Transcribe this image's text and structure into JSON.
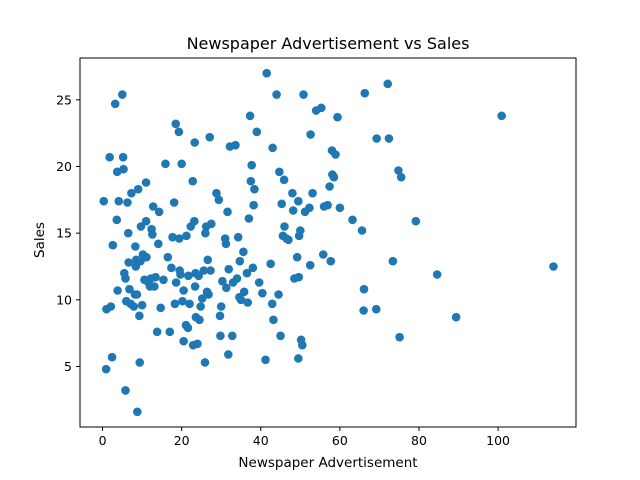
{
  "chart_data": {
    "type": "scatter",
    "title": "Newspaper Advertisement vs Sales",
    "xlabel": "Newspaper Advertisement",
    "ylabel": "Sales",
    "xlim": [
      -5.7,
      119.7
    ],
    "ylim": [
      0.46,
      28.14
    ],
    "xticks": [
      0,
      20,
      40,
      60,
      80,
      100
    ],
    "yticks": [
      5,
      10,
      15,
      20,
      25
    ],
    "grid": false,
    "marker_color": "#1f77b4",
    "points": [
      [
        0.3,
        17.4
      ],
      [
        0.9,
        4.8
      ],
      [
        1.0,
        9.3
      ],
      [
        1.8,
        20.7
      ],
      [
        2.1,
        9.5
      ],
      [
        2.4,
        5.7
      ],
      [
        2.6,
        14.1
      ],
      [
        3.2,
        24.7
      ],
      [
        3.6,
        16.0
      ],
      [
        3.7,
        19.6
      ],
      [
        3.8,
        10.7
      ],
      [
        4.1,
        17.4
      ],
      [
        5.0,
        25.4
      ],
      [
        5.2,
        20.7
      ],
      [
        5.3,
        19.8
      ],
      [
        5.5,
        12.0
      ],
      [
        5.8,
        3.2
      ],
      [
        5.8,
        11.6
      ],
      [
        6.0,
        9.9
      ],
      [
        6.3,
        17.3
      ],
      [
        6.5,
        15.0
      ],
      [
        6.6,
        12.8
      ],
      [
        6.8,
        10.8
      ],
      [
        7.1,
        9.7
      ],
      [
        7.3,
        18.0
      ],
      [
        7.9,
        9.5
      ],
      [
        8.2,
        10.4
      ],
      [
        8.3,
        14.0
      ],
      [
        8.4,
        12.5
      ],
      [
        8.5,
        13.0
      ],
      [
        8.7,
        10.4
      ],
      [
        8.8,
        1.6
      ],
      [
        9.0,
        18.3
      ],
      [
        9.3,
        8.8
      ],
      [
        9.4,
        5.3
      ],
      [
        9.6,
        12.9
      ],
      [
        9.7,
        15.5
      ],
      [
        10.0,
        9.6
      ],
      [
        10.2,
        13.4
      ],
      [
        10.6,
        11.5
      ],
      [
        11.0,
        15.9
      ],
      [
        11.0,
        18.8
      ],
      [
        11.1,
        13.2
      ],
      [
        11.6,
        11.3
      ],
      [
        12.0,
        11.0
      ],
      [
        12.2,
        11.6
      ],
      [
        12.4,
        15.3
      ],
      [
        12.6,
        14.9
      ],
      [
        12.8,
        17.0
      ],
      [
        13.1,
        11.0
      ],
      [
        13.4,
        11.7
      ],
      [
        13.8,
        7.6
      ],
      [
        14.1,
        14.2
      ],
      [
        14.3,
        16.6
      ],
      [
        14.7,
        9.4
      ],
      [
        15.4,
        11.5
      ],
      [
        15.9,
        20.2
      ],
      [
        16.5,
        13.2
      ],
      [
        17.0,
        7.6
      ],
      [
        17.4,
        12.4
      ],
      [
        17.7,
        14.7
      ],
      [
        18.1,
        17.3
      ],
      [
        18.3,
        9.7
      ],
      [
        18.5,
        23.2
      ],
      [
        18.6,
        11.3
      ],
      [
        19.3,
        22.6
      ],
      [
        19.4,
        14.6
      ],
      [
        19.5,
        12.2
      ],
      [
        19.7,
        11.9
      ],
      [
        20.0,
        20.2
      ],
      [
        20.2,
        9.9
      ],
      [
        20.5,
        10.7
      ],
      [
        20.5,
        6.9
      ],
      [
        21.1,
        8.1
      ],
      [
        21.2,
        14.8
      ],
      [
        21.6,
        7.9
      ],
      [
        21.7,
        11.8
      ],
      [
        22.0,
        9.7
      ],
      [
        22.3,
        15.5
      ],
      [
        22.8,
        18.9
      ],
      [
        22.9,
        6.6
      ],
      [
        23.2,
        15.9
      ],
      [
        23.3,
        21.8
      ],
      [
        23.4,
        11.0
      ],
      [
        23.5,
        12.0
      ],
      [
        23.6,
        8.7
      ],
      [
        24.0,
        6.7
      ],
      [
        24.3,
        11.8
      ],
      [
        24.5,
        8.5
      ],
      [
        24.8,
        9.5
      ],
      [
        25.2,
        10.1
      ],
      [
        25.6,
        12.2
      ],
      [
        25.9,
        5.3
      ],
      [
        26.0,
        15.0
      ],
      [
        26.2,
        15.5
      ],
      [
        26.4,
        10.6
      ],
      [
        26.6,
        13.0
      ],
      [
        26.8,
        10.4
      ],
      [
        27.1,
        22.2
      ],
      [
        27.3,
        12.2
      ],
      [
        27.5,
        15.7
      ],
      [
        28.8,
        18.0
      ],
      [
        29.4,
        17.5
      ],
      [
        29.7,
        8.8
      ],
      [
        29.8,
        7.3
      ],
      [
        30.0,
        9.5
      ],
      [
        30.3,
        11.4
      ],
      [
        31.0,
        14.6
      ],
      [
        31.2,
        14.2
      ],
      [
        31.3,
        10.9
      ],
      [
        31.6,
        16.6
      ],
      [
        31.8,
        5.9
      ],
      [
        31.9,
        12.3
      ],
      [
        32.2,
        21.5
      ],
      [
        32.8,
        7.3
      ],
      [
        33.0,
        11.3
      ],
      [
        33.6,
        21.6
      ],
      [
        34.0,
        11.6
      ],
      [
        34.3,
        14.7
      ],
      [
        34.6,
        10.2
      ],
      [
        34.7,
        12.9
      ],
      [
        35.0,
        10.0
      ],
      [
        35.6,
        13.6
      ],
      [
        35.8,
        10.6
      ],
      [
        36.5,
        12.0
      ],
      [
        36.7,
        9.8
      ],
      [
        37.0,
        16.1
      ],
      [
        37.3,
        23.8
      ],
      [
        37.5,
        18.9
      ],
      [
        37.7,
        20.1
      ],
      [
        38.0,
        12.4
      ],
      [
        38.2,
        17.1
      ],
      [
        38.4,
        18.3
      ],
      [
        39.0,
        22.6
      ],
      [
        39.6,
        11.3
      ],
      [
        40.4,
        10.5
      ],
      [
        41.2,
        5.5
      ],
      [
        41.5,
        27.0
      ],
      [
        42.5,
        12.7
      ],
      [
        42.9,
        9.7
      ],
      [
        43.0,
        21.4
      ],
      [
        43.2,
        8.5
      ],
      [
        44.0,
        25.4
      ],
      [
        44.5,
        10.4
      ],
      [
        44.7,
        19.6
      ],
      [
        45.0,
        7.3
      ],
      [
        45.3,
        17.2
      ],
      [
        45.6,
        14.8
      ],
      [
        45.9,
        19.0
      ],
      [
        46.0,
        15.5
      ],
      [
        46.5,
        14.6
      ],
      [
        47.0,
        14.5
      ],
      [
        48.0,
        18.0
      ],
      [
        48.2,
        16.7
      ],
      [
        48.5,
        11.6
      ],
      [
        49.2,
        13.2
      ],
      [
        49.5,
        17.4
      ],
      [
        49.5,
        5.6
      ],
      [
        49.6,
        11.7
      ],
      [
        49.7,
        14.8
      ],
      [
        50.0,
        15.2
      ],
      [
        50.2,
        7.0
      ],
      [
        50.5,
        6.6
      ],
      [
        50.8,
        25.4
      ],
      [
        51.2,
        16.6
      ],
      [
        52.3,
        16.9
      ],
      [
        52.5,
        12.6
      ],
      [
        52.6,
        22.4
      ],
      [
        53.1,
        18.0
      ],
      [
        54.0,
        24.2
      ],
      [
        55.3,
        24.4
      ],
      [
        55.8,
        13.4
      ],
      [
        56.0,
        17.0
      ],
      [
        56.9,
        17.1
      ],
      [
        57.4,
        18.5
      ],
      [
        57.7,
        12.9
      ],
      [
        58.0,
        21.2
      ],
      [
        58.1,
        19.4
      ],
      [
        58.5,
        19.2
      ],
      [
        58.9,
        20.9
      ],
      [
        59.4,
        23.7
      ],
      [
        60.0,
        16.9
      ],
      [
        63.2,
        16.0
      ],
      [
        65.6,
        15.2
      ],
      [
        66.0,
        9.2
      ],
      [
        66.1,
        10.8
      ],
      [
        66.3,
        25.5
      ],
      [
        69.2,
        9.3
      ],
      [
        69.3,
        22.1
      ],
      [
        72.1,
        26.2
      ],
      [
        72.4,
        22.1
      ],
      [
        73.4,
        12.9
      ],
      [
        74.8,
        19.7
      ],
      [
        75.1,
        7.2
      ],
      [
        75.5,
        19.2
      ],
      [
        79.2,
        15.9
      ],
      [
        84.6,
        11.9
      ],
      [
        89.4,
        8.7
      ],
      [
        100.9,
        23.8
      ],
      [
        114.0,
        12.5
      ]
    ]
  }
}
